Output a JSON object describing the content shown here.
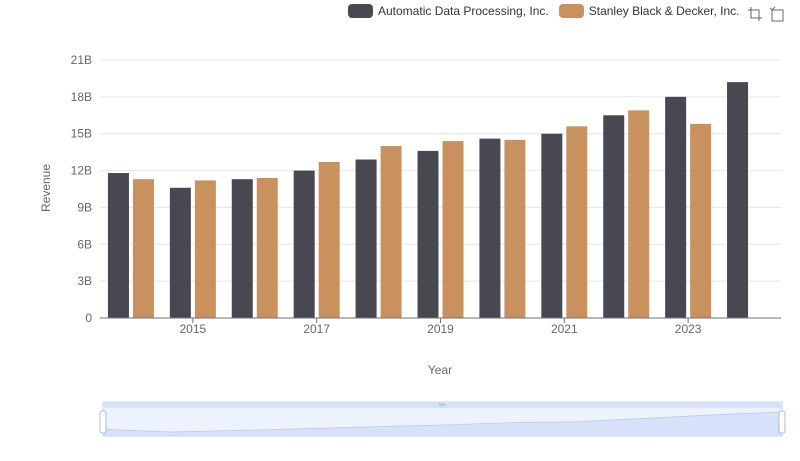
{
  "chart_data": {
    "type": "bar",
    "xlabel": "Year",
    "ylabel": "Revenue",
    "x": [
      2014,
      2015,
      2016,
      2017,
      2018,
      2019,
      2020,
      2021,
      2022,
      2023,
      2024
    ],
    "x_tick_labels": [
      "2015",
      "2017",
      "2019",
      "2021",
      "2023"
    ],
    "y_ticks": [
      0,
      3,
      6,
      9,
      12,
      15,
      18,
      21
    ],
    "y_tick_labels": [
      "0",
      "3B",
      "6B",
      "9B",
      "12B",
      "15B",
      "18B",
      "21B"
    ],
    "ylim": [
      0,
      21
    ],
    "y_unit": "billions",
    "grid": "horizontal",
    "legend_position": "top-right",
    "series": [
      {
        "name": "Automatic Data Processing, Inc.",
        "color": "#484851",
        "values": [
          11.8,
          10.6,
          11.3,
          12.0,
          12.9,
          13.6,
          14.6,
          15.0,
          16.5,
          18.0,
          19.2
        ]
      },
      {
        "name": "Stanley Black & Decker, Inc.",
        "color": "#c8915e",
        "values": [
          11.3,
          11.2,
          11.4,
          12.7,
          14.0,
          14.4,
          14.5,
          15.6,
          16.9,
          15.8,
          null
        ]
      }
    ]
  },
  "toolbox": {
    "zoom_icon": "zoom-icon",
    "restore_icon": "restore-icon"
  },
  "datazoom": {
    "start_percent": 0,
    "end_percent": 100,
    "fill_color": "#d7e2fa",
    "border_color": "#c9d4ef"
  }
}
